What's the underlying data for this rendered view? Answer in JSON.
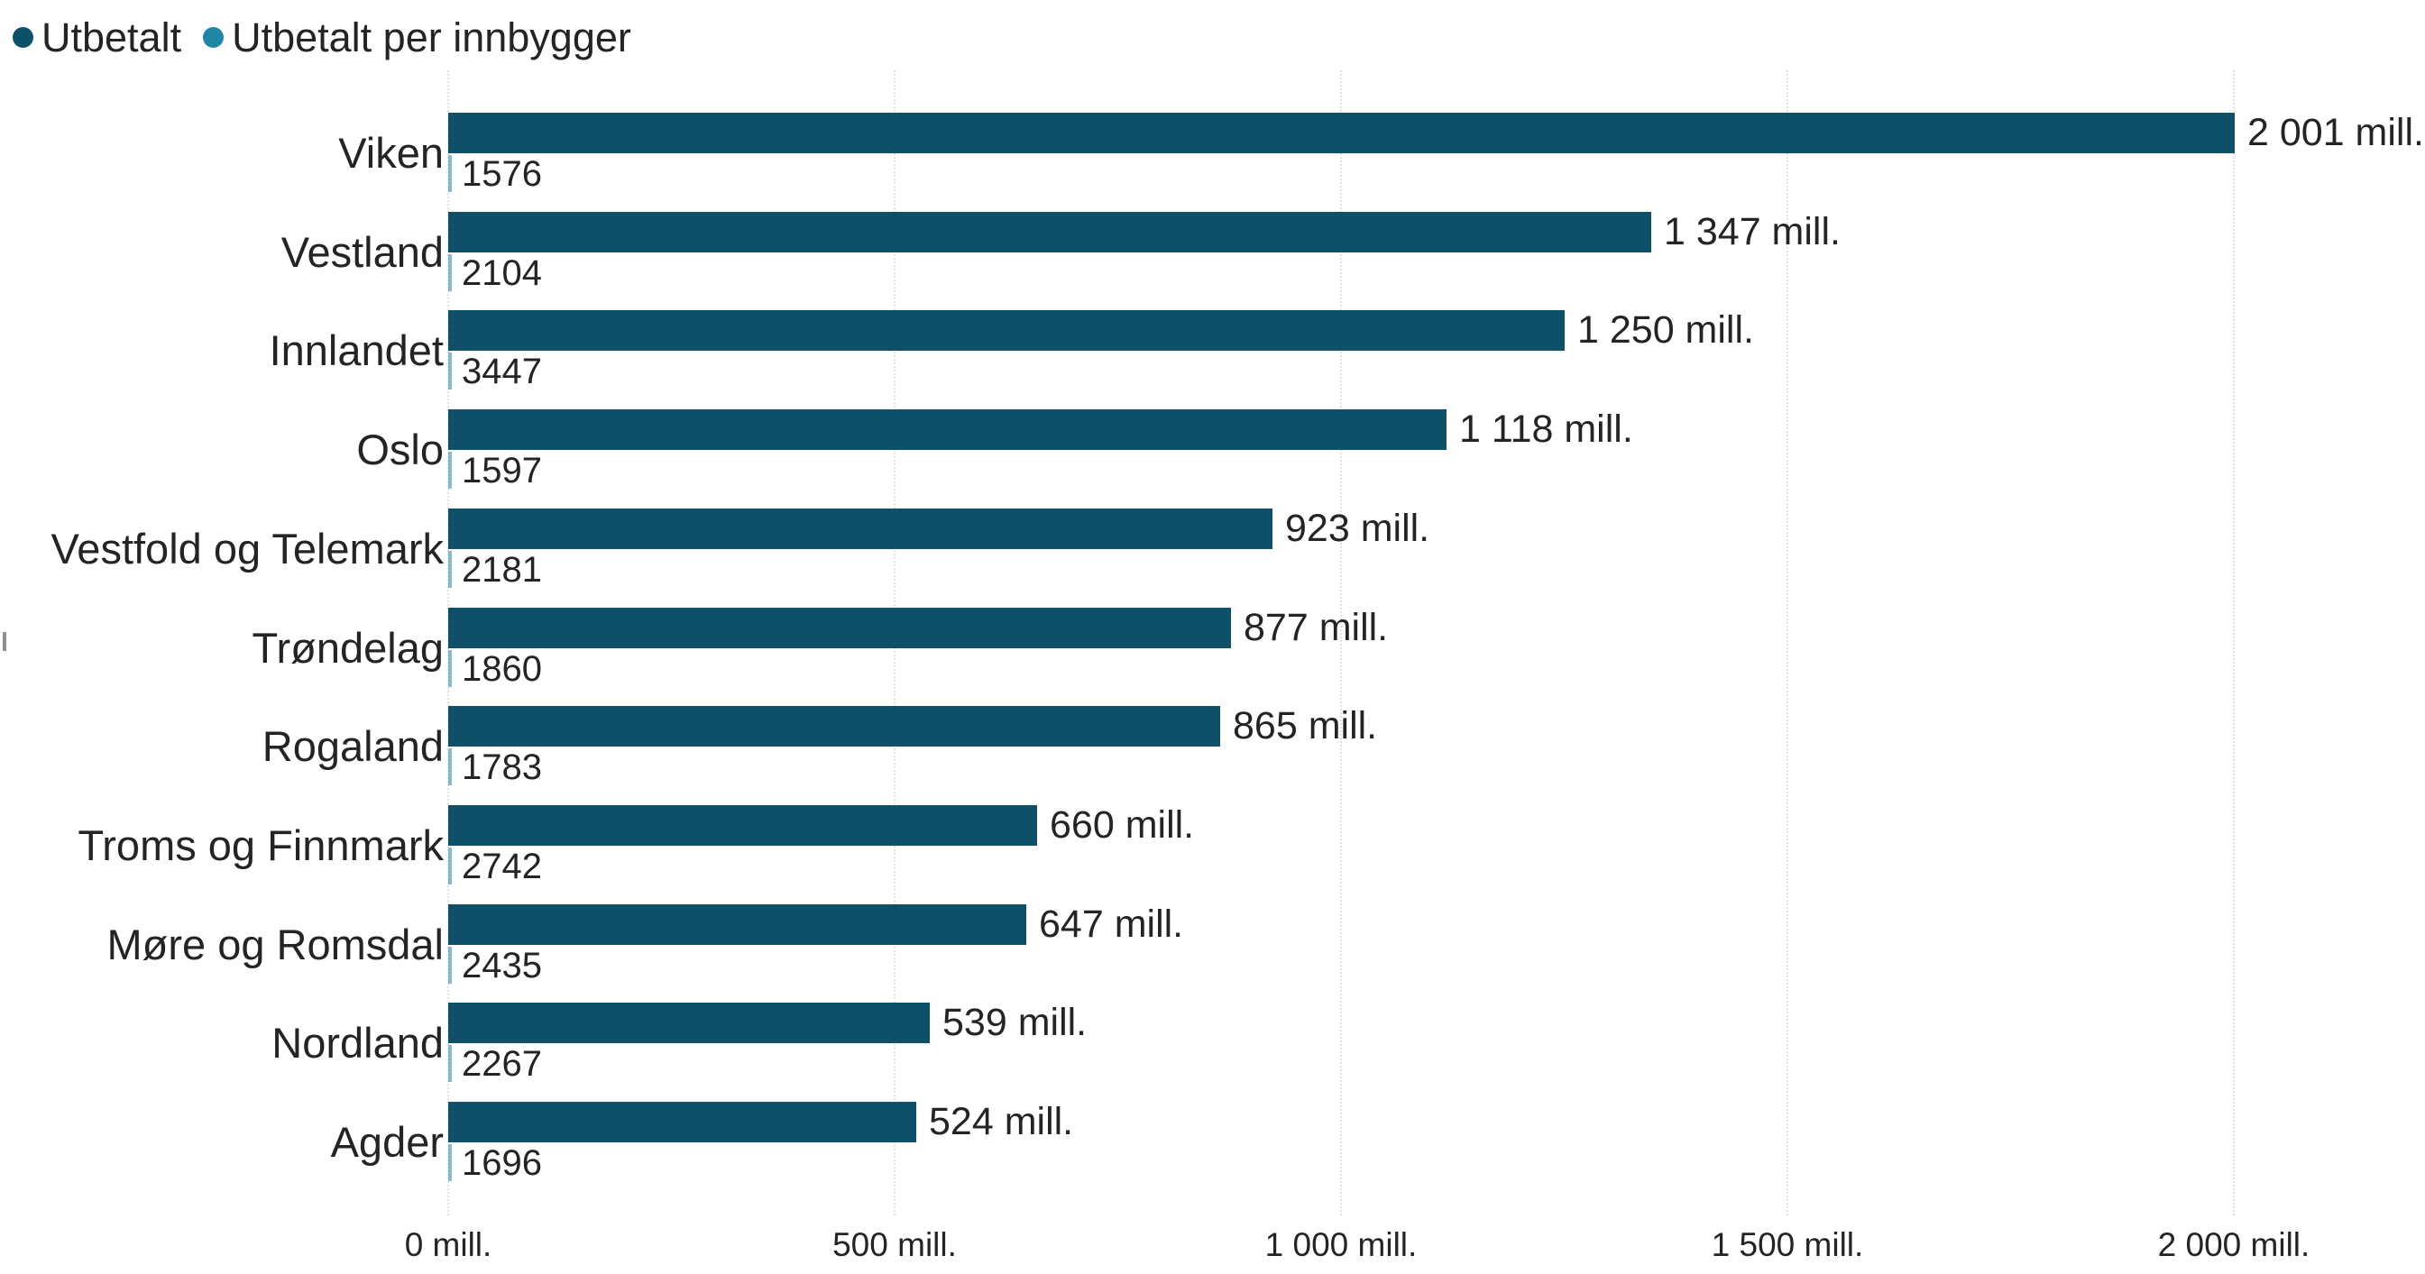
{
  "theme": {
    "text_color": "#252423",
    "grid_color": "#e0e0e0",
    "background": "#ffffff"
  },
  "chart_data": {
    "type": "bar",
    "orientation": "horizontal",
    "title": "",
    "legend_position": "top-left",
    "grid": {
      "vertical": true,
      "style": "dotted",
      "color": "#e0e0e0"
    },
    "categories": [
      "Viken",
      "Vestland",
      "Innlandet",
      "Oslo",
      "Vestfold og Telemark",
      "Trøndelag",
      "Rogaland",
      "Troms og Finnmark",
      "Møre og Romsdal",
      "Nordland",
      "Agder"
    ],
    "series": [
      {
        "name": "Utbetalt",
        "color": "#0e5068",
        "unit": "mill.",
        "values": [
          2001,
          1347,
          1250,
          1118,
          923,
          877,
          865,
          660,
          647,
          539,
          524
        ],
        "labels": [
          "2 001 mill.",
          "1 347 mill.",
          "1 250 mill.",
          "1 118 mill.",
          "923 mill.",
          "877 mill.",
          "865 mill.",
          "660 mill.",
          "647 mill.",
          "539 mill.",
          "524 mill."
        ]
      },
      {
        "name": "Utbetalt per innbygger",
        "color": "#1f86a6",
        "unit": "",
        "values": [
          1576,
          2104,
          3447,
          1597,
          2181,
          1860,
          1783,
          2742,
          2435,
          2267,
          1696
        ],
        "labels": [
          "1576",
          "2104",
          "3447",
          "1597",
          "2181",
          "1860",
          "1783",
          "2742",
          "2435",
          "2267",
          "1696"
        ]
      }
    ],
    "x_axis": {
      "range": [
        0,
        2100
      ],
      "ticks": [
        {
          "value": 0,
          "label": "0 mill."
        },
        {
          "value": 500,
          "label": "500 mill."
        },
        {
          "value": 1000,
          "label": "1 000 mill."
        },
        {
          "value": 1500,
          "label": "1 500 mill."
        },
        {
          "value": 2000,
          "label": "2 000 mill."
        }
      ]
    }
  }
}
